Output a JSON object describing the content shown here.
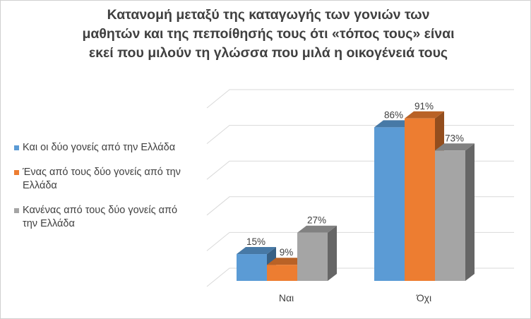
{
  "chart_data": {
    "type": "bar",
    "title_lines": [
      "Κατανομή μεταξύ της καταγωγής των γονιών των",
      "μαθητών και της πεποίθησής τους ότι «τόπος τους» είναι",
      "εκεί που μιλούν τη γλώσσα που μιλά η οικογένειά τους"
    ],
    "categories": [
      "Ναι",
      "Όχι"
    ],
    "series": [
      {
        "name": "Και οι δύο γονείς από την Ελλάδα",
        "values": [
          15,
          86
        ],
        "labels": [
          "15%",
          "86%"
        ],
        "color": "#5b9bd5"
      },
      {
        "name": "Ένας από τους δύο γονείς από την Ελλάδα",
        "values": [
          9,
          91
        ],
        "labels": [
          "9%",
          "91%"
        ],
        "color": "#ed7d31"
      },
      {
        "name": "Κανένας από τους δύο γονείς από την Ελλάδα",
        "values": [
          27,
          73
        ],
        "labels": [
          "27%",
          "73%"
        ],
        "color": "#a5a5a5"
      }
    ],
    "ylim": [
      0,
      100
    ],
    "value_axis_visible": false,
    "gridlines": true,
    "style": "3d-clustered-column",
    "legend_position": "left"
  }
}
